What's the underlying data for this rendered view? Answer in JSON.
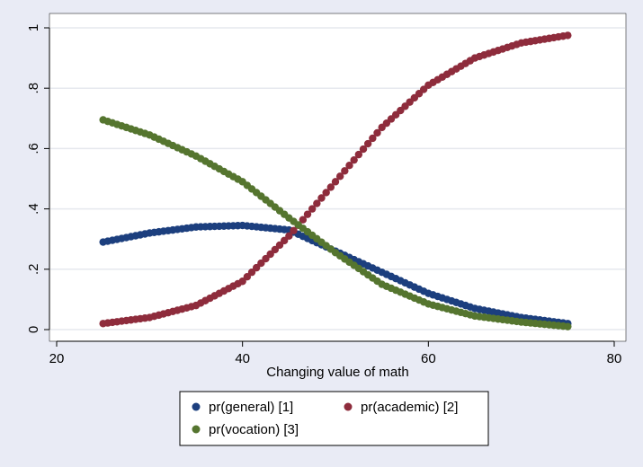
{
  "chart_data": {
    "type": "scatter",
    "title": "",
    "xlabel": "Changing value of math",
    "ylabel": "",
    "xlim": [
      20,
      80
    ],
    "ylim": [
      0,
      1
    ],
    "xticks": [
      20,
      40,
      60,
      80
    ],
    "yticks": [
      0,
      0.2,
      0.4,
      0.6,
      0.8,
      1
    ],
    "ytick_labels": [
      "0",
      ".2",
      ".4",
      ".6",
      ".8",
      "1"
    ],
    "grid": "horizontal",
    "legend_position": "bottom",
    "x_range": [
      25,
      75
    ],
    "x_step": 0.5,
    "series": [
      {
        "name": "pr(general) [1]",
        "color": "#1c3f7e",
        "x": [
          25,
          30,
          35,
          40,
          45,
          50,
          55,
          60,
          65,
          70,
          75
        ],
        "values": [
          0.29,
          0.32,
          0.34,
          0.345,
          0.33,
          0.26,
          0.19,
          0.12,
          0.07,
          0.04,
          0.02
        ]
      },
      {
        "name": "pr(academic) [2]",
        "color": "#8e2c3c",
        "x": [
          25,
          30,
          35,
          40,
          45,
          50,
          55,
          60,
          65,
          70,
          75
        ],
        "values": [
          0.02,
          0.04,
          0.08,
          0.16,
          0.31,
          0.49,
          0.67,
          0.81,
          0.9,
          0.95,
          0.975
        ]
      },
      {
        "name": "pr(vocation) [3]",
        "color": "#55752f",
        "x": [
          25,
          30,
          35,
          40,
          45,
          50,
          55,
          60,
          65,
          70,
          75
        ],
        "values": [
          0.695,
          0.645,
          0.575,
          0.49,
          0.37,
          0.255,
          0.15,
          0.085,
          0.045,
          0.025,
          0.01
        ]
      }
    ]
  }
}
